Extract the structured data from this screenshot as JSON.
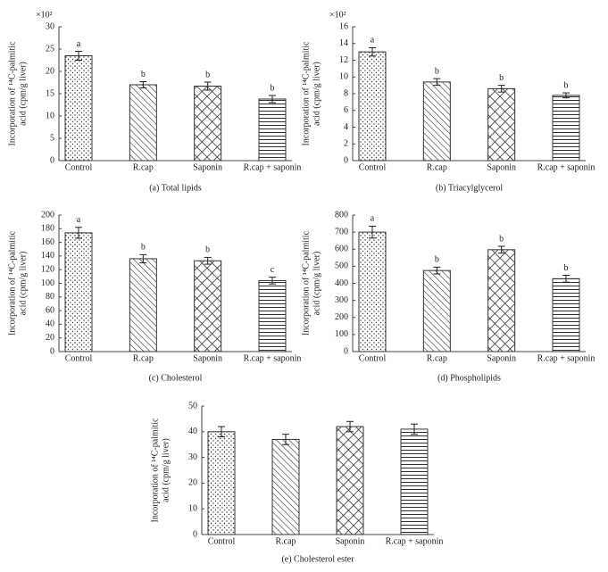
{
  "chart_data": [
    {
      "type": "bar",
      "title": "(a)  Total lipids",
      "multiplier": "×10²",
      "ylabel": [
        "Incorporation of ¹⁴C-palmitic",
        "acid (cpm/g liver)"
      ],
      "categories": [
        "Control",
        "R.cap",
        "Saponin",
        "R.cap + saponin"
      ],
      "values": [
        23.5,
        17,
        16.7,
        13.8
      ],
      "errors": [
        1,
        0.7,
        0.9,
        0.8
      ],
      "annotations": [
        "a",
        "b",
        "b",
        "b"
      ],
      "ylim": [
        0,
        30
      ],
      "yticks": [
        0,
        5,
        10,
        15,
        20,
        25,
        30
      ]
    },
    {
      "type": "bar",
      "title": "(b)  Triacylglycerol",
      "multiplier": "×10²",
      "ylabel": [
        "Incorporation of ¹⁴C-palmitic",
        "acid (cpm/g liver)"
      ],
      "categories": [
        "Control",
        "R.cap",
        "Saponin",
        "R.cap + saponin"
      ],
      "values": [
        13,
        9.4,
        8.6,
        7.8
      ],
      "errors": [
        0.5,
        0.4,
        0.4,
        0.3
      ],
      "annotations": [
        "a",
        "b",
        "b",
        "b"
      ],
      "ylim": [
        0,
        16
      ],
      "yticks": [
        0,
        2,
        4,
        6,
        8,
        10,
        12,
        14,
        16
      ]
    },
    {
      "type": "bar",
      "title": "(c)  Cholesterol",
      "ylabel": [
        "Incorporation of ¹⁴C-palmitic",
        "acid (cpm/g liver)"
      ],
      "categories": [
        "Control",
        "R.cap",
        "Saponin",
        "R.cap + saponin"
      ],
      "values": [
        174,
        136,
        133,
        104
      ],
      "errors": [
        8,
        6,
        5,
        5
      ],
      "annotations": [
        "a",
        "b",
        "b",
        "c"
      ],
      "ylim": [
        0,
        200
      ],
      "yticks": [
        0,
        20,
        40,
        60,
        80,
        100,
        120,
        140,
        160,
        180,
        200
      ]
    },
    {
      "type": "bar",
      "title": "(d)  Phospholipids",
      "ylabel": [
        "Incorporation of ¹⁴C-palmitic",
        "acid (cpm/g liver)"
      ],
      "categories": [
        "Control",
        "R.cap",
        "Saponin",
        "R.cap + saponin"
      ],
      "values": [
        700,
        475,
        597,
        427
      ],
      "errors": [
        35,
        20,
        20,
        20
      ],
      "annotations": [
        "a",
        "b",
        "b",
        "b"
      ],
      "ylim": [
        0,
        800
      ],
      "yticks": [
        0,
        100,
        200,
        300,
        400,
        500,
        600,
        700,
        800
      ]
    },
    {
      "type": "bar",
      "title": "(e)  Cholesterol ester",
      "ylabel": [
        "Incorporation of ¹⁴C-palmitic",
        "acid (cpm/g liver)"
      ],
      "categories": [
        "Control",
        "R.cap",
        "Saponin",
        "R.cap + saponin"
      ],
      "values": [
        40,
        37,
        42,
        41
      ],
      "errors": [
        2,
        2,
        2,
        2
      ],
      "ylim": [
        0,
        50
      ],
      "yticks": [
        0,
        10,
        20,
        30,
        40,
        50
      ]
    }
  ]
}
